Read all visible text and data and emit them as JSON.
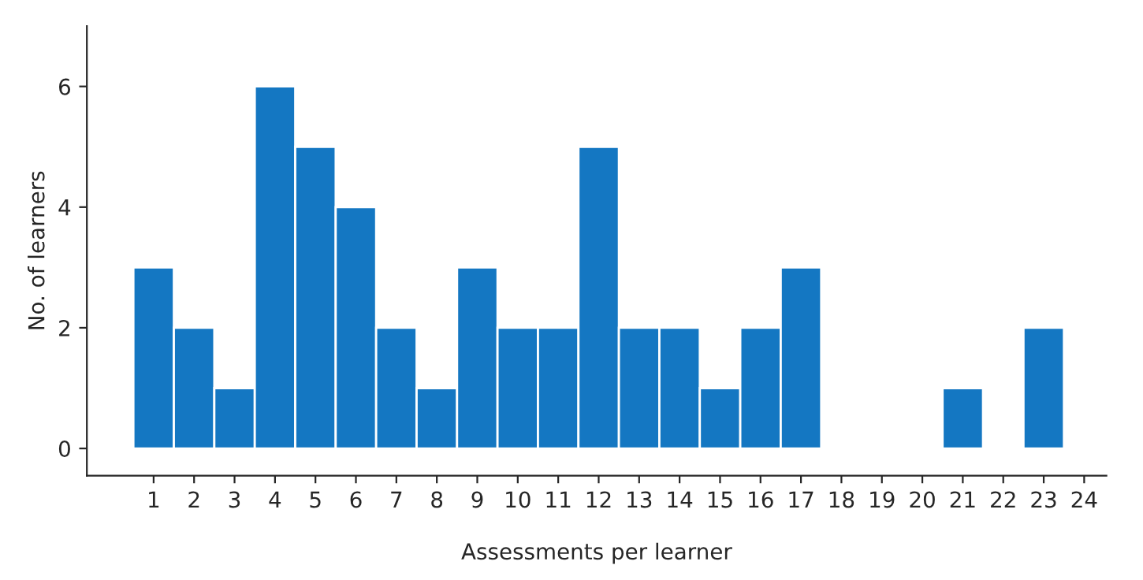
{
  "chart_data": {
    "type": "bar",
    "xlabel": "Assessments per learner",
    "ylabel": "No. of learners",
    "categories": [
      "1",
      "2",
      "3",
      "4",
      "5",
      "6",
      "7",
      "8",
      "9",
      "10",
      "11",
      "12",
      "13",
      "14",
      "15",
      "16",
      "17",
      "18",
      "19",
      "20",
      "21",
      "22",
      "23",
      "24"
    ],
    "values": [
      3,
      2,
      1,
      6,
      5,
      4,
      2,
      1,
      3,
      2,
      2,
      5,
      2,
      2,
      1,
      2,
      3,
      0,
      0,
      0,
      1,
      0,
      2,
      0
    ],
    "color": "#1477c2",
    "ylim": [
      -0.45,
      7
    ],
    "yticks": [
      0,
      2,
      4,
      6
    ],
    "grid": false,
    "legend": false
  }
}
